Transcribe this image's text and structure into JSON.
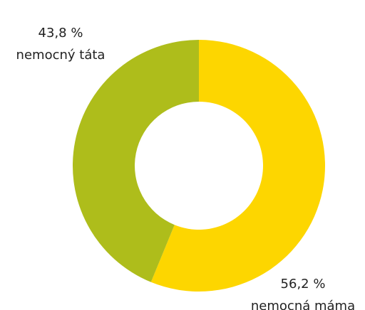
{
  "chart_data": {
    "type": "donut",
    "categories": [
      "nemocná máma",
      "nemocný táta"
    ],
    "values": [
      56.2,
      43.8
    ],
    "value_labels": [
      "56,2 %",
      "43,8 %"
    ],
    "colors": [
      "#fdd600",
      "#aebd1b"
    ]
  }
}
